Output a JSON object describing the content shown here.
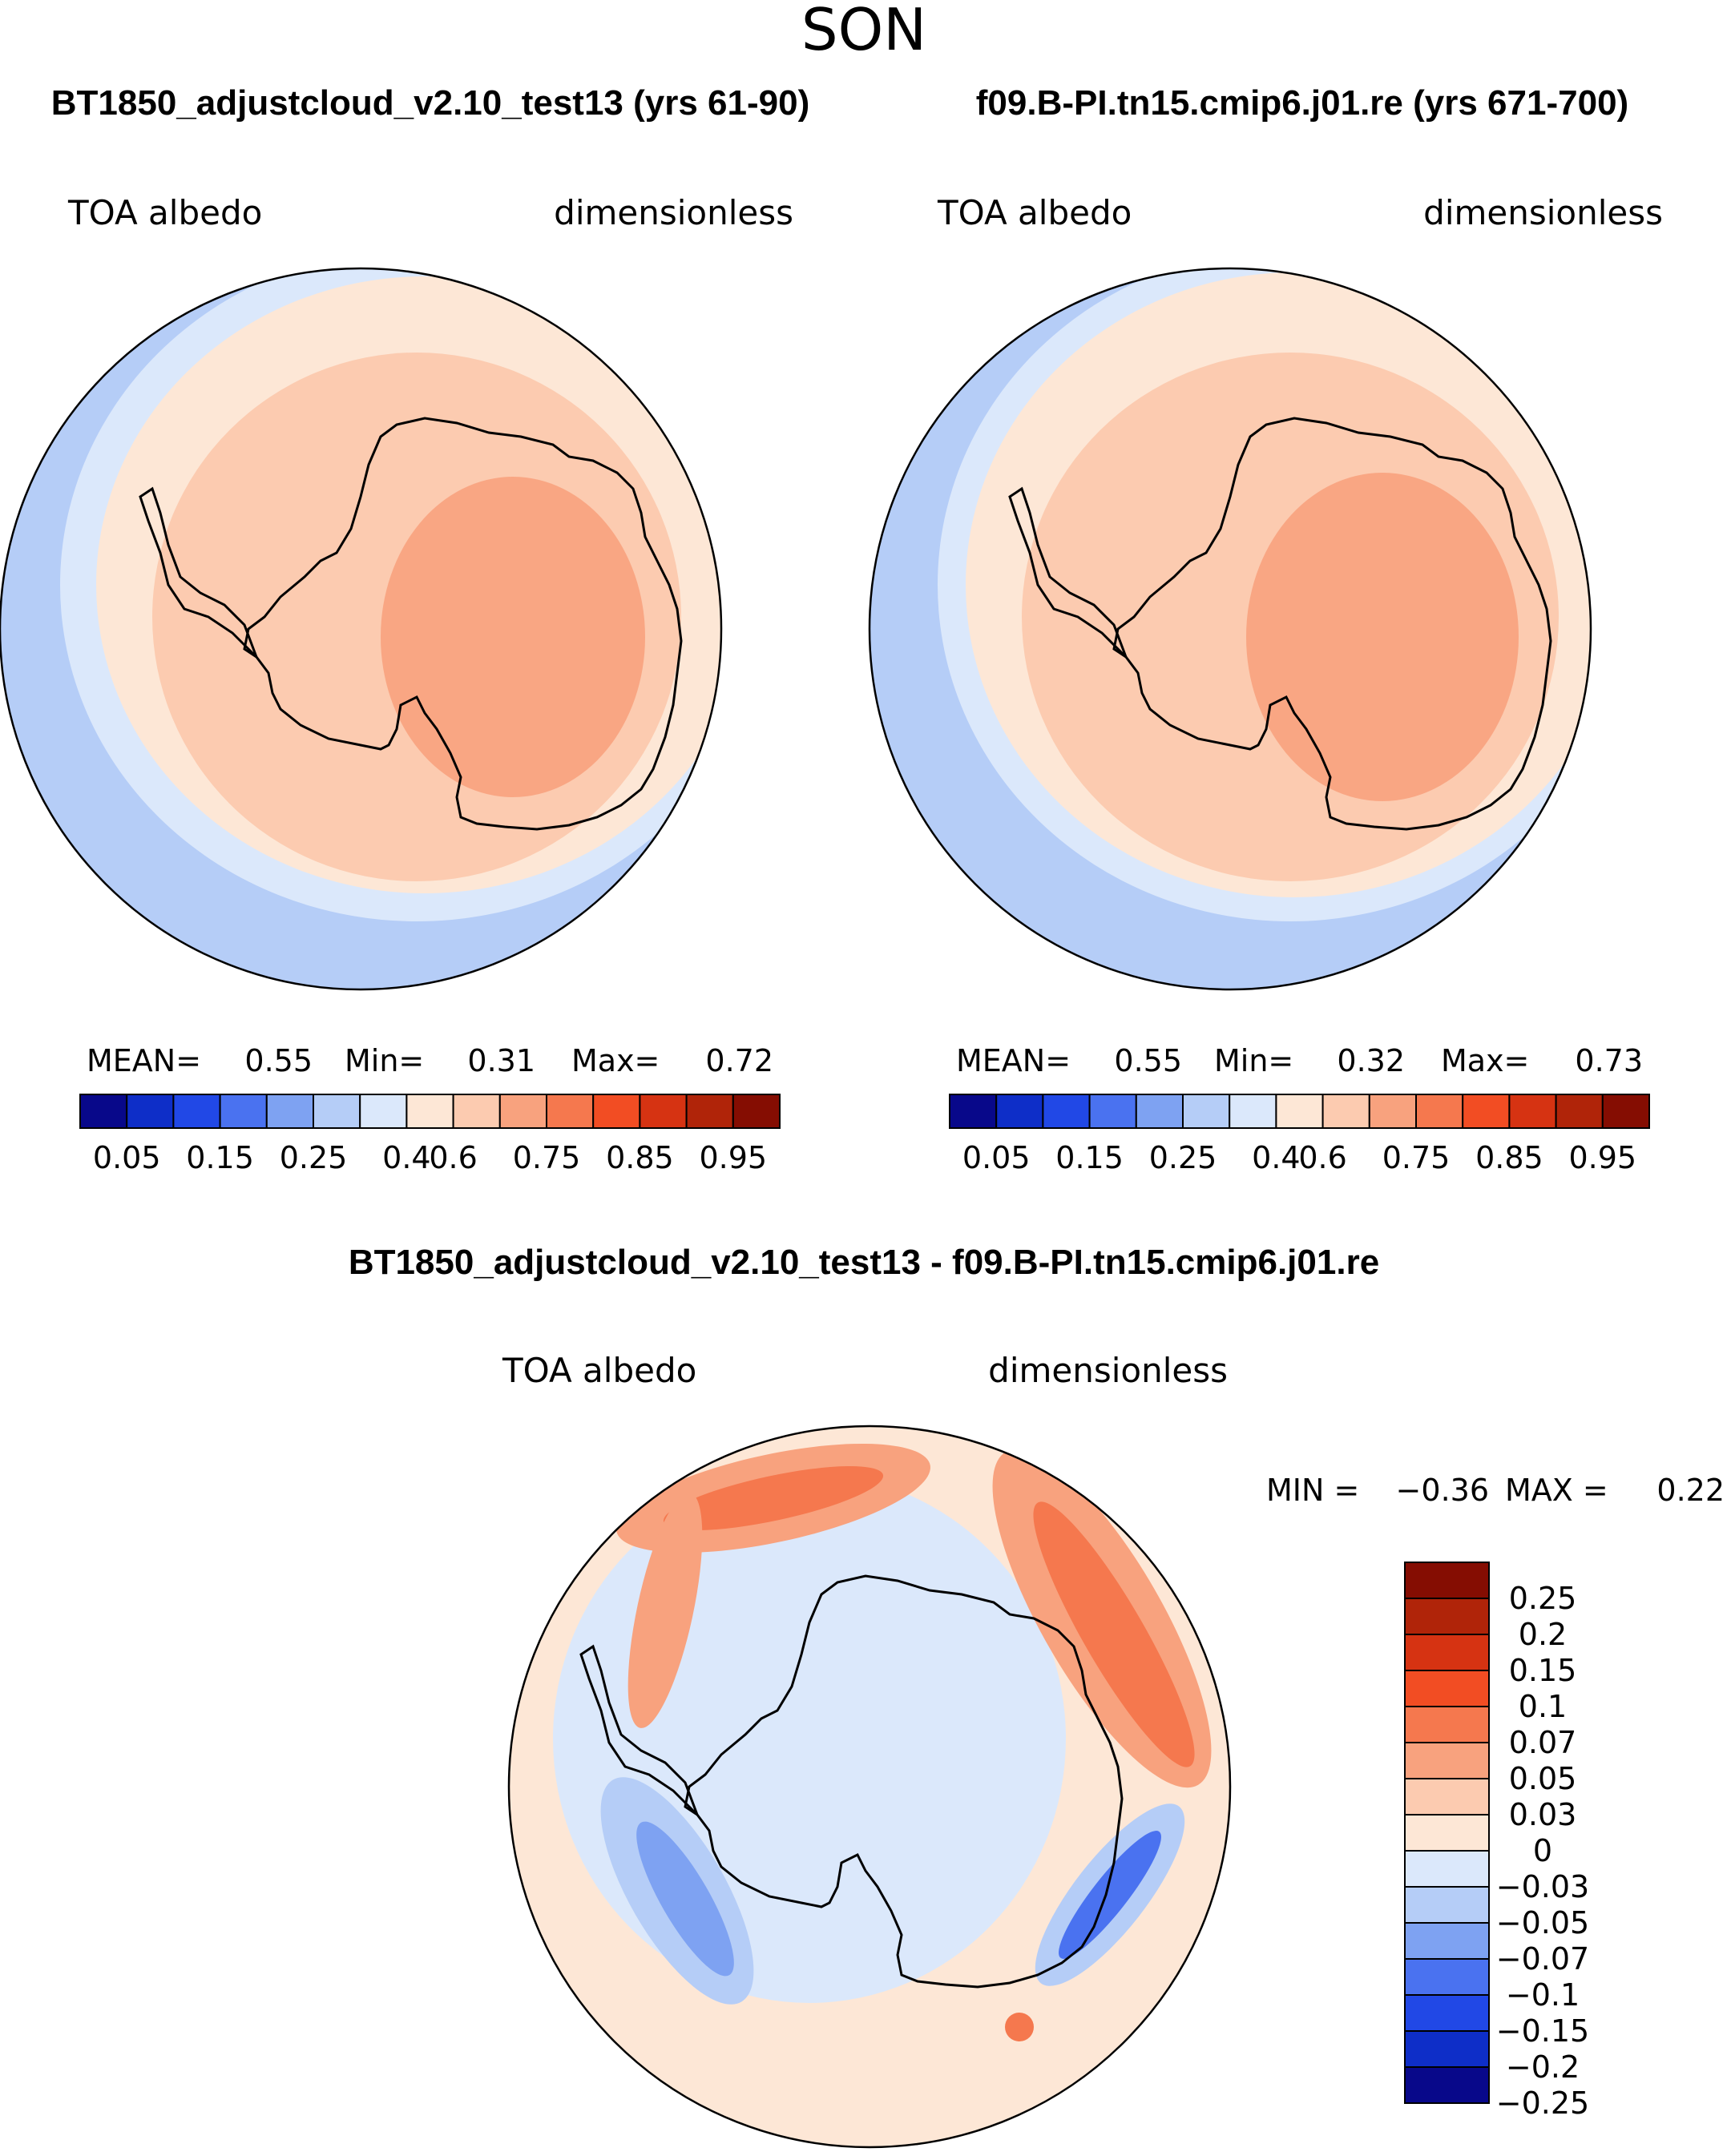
{
  "title": "SON",
  "panels": [
    {
      "case_title": "BT1850_adjustcloud_v2.10_test13 (yrs 61-90)",
      "variable": "TOA albedo",
      "units": "dimensionless",
      "stats": {
        "mean_label": "MEAN=",
        "mean": "0.55",
        "min_label": "Min=",
        "min": "0.31",
        "max_label": "Max=",
        "max": "0.72"
      }
    },
    {
      "case_title": "f09.B-PI.tn15.cmip6.j01.re (yrs 671-700)",
      "variable": "TOA albedo",
      "units": "dimensionless",
      "stats": {
        "mean_label": "MEAN=",
        "mean": "0.55",
        "min_label": "Min=",
        "min": "0.32",
        "max_label": "Max=",
        "max": "0.73"
      }
    }
  ],
  "abs_colorbar": {
    "colors": [
      "#08088a",
      "#0e2ec8",
      "#2148e6",
      "#4a72f0",
      "#7ea2f2",
      "#b5cdf7",
      "#dbe8fb",
      "#fde7d6",
      "#fccbb0",
      "#f8a27e",
      "#f5784e",
      "#f24d23",
      "#d63312",
      "#b02409",
      "#850d02"
    ],
    "labels": [
      "0.05",
      "0.15",
      "0.25",
      "0.4",
      "0.6",
      "0.75",
      "0.85",
      "0.95"
    ]
  },
  "diff": {
    "title": "BT1850_adjustcloud_v2.10_test13 - f09.B-PI.tn15.cmip6.j01.re",
    "variable": "TOA albedo",
    "units": "dimensionless",
    "min_label": "MIN =",
    "min": "−0.36",
    "max_label": "MAX =",
    "max": "0.22",
    "colorbar": {
      "colors": [
        "#850d02",
        "#b02409",
        "#d63312",
        "#f24d23",
        "#f5784e",
        "#f8a27e",
        "#fccbb0",
        "#fde7d6",
        "#dbe8fb",
        "#b5cdf7",
        "#7ea2f2",
        "#4a72f0",
        "#2148e6",
        "#0e2ec8",
        "#08088a"
      ],
      "labels": [
        "0.25",
        "0.2",
        "0.15",
        "0.1",
        "0.07",
        "0.05",
        "0.03",
        "0",
        "−0.03",
        "−0.05",
        "−0.07",
        "−0.1",
        "−0.15",
        "−0.2",
        "−0.25"
      ]
    }
  }
}
